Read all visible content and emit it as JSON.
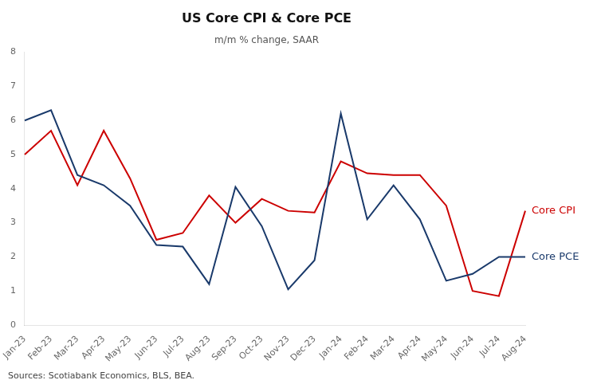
{
  "chart_data": {
    "type": "line",
    "title": "US Core CPI & Core PCE",
    "subtitle": "m/m % change, SAAR",
    "source": "Sources: Scotiabank Economics, BLS, BEA.",
    "categories": [
      "Jan-23",
      "Feb-23",
      "Mar-23",
      "Apr-23",
      "May-23",
      "Jun-23",
      "Jul-23",
      "Aug-23",
      "Sep-23",
      "Oct-23",
      "Nov-23",
      "Dec-23",
      "Jan-24",
      "Feb-24",
      "Mar-24",
      "Apr-24",
      "May-24",
      "Jun-24",
      "Jul-24",
      "Aug-24"
    ],
    "series": [
      {
        "name": "Core PCE",
        "color": "#1a3a6b",
        "values": [
          6.0,
          6.3,
          4.4,
          4.1,
          3.5,
          2.35,
          2.3,
          1.2,
          4.05,
          2.9,
          1.05,
          1.9,
          6.2,
          3.1,
          4.1,
          3.1,
          1.3,
          1.5,
          2.0,
          2.0
        ]
      },
      {
        "name": "Core CPI",
        "color": "#cc0000",
        "values": [
          5.0,
          5.7,
          4.1,
          5.7,
          4.3,
          2.5,
          2.7,
          3.8,
          3.0,
          3.7,
          3.35,
          3.3,
          4.8,
          4.45,
          4.4,
          4.4,
          3.5,
          1.0,
          0.85,
          3.35
        ]
      }
    ],
    "ylim": [
      0,
      8
    ],
    "yticks": [
      0,
      1,
      2,
      3,
      4,
      5,
      6,
      7,
      8
    ],
    "grid": false
  }
}
